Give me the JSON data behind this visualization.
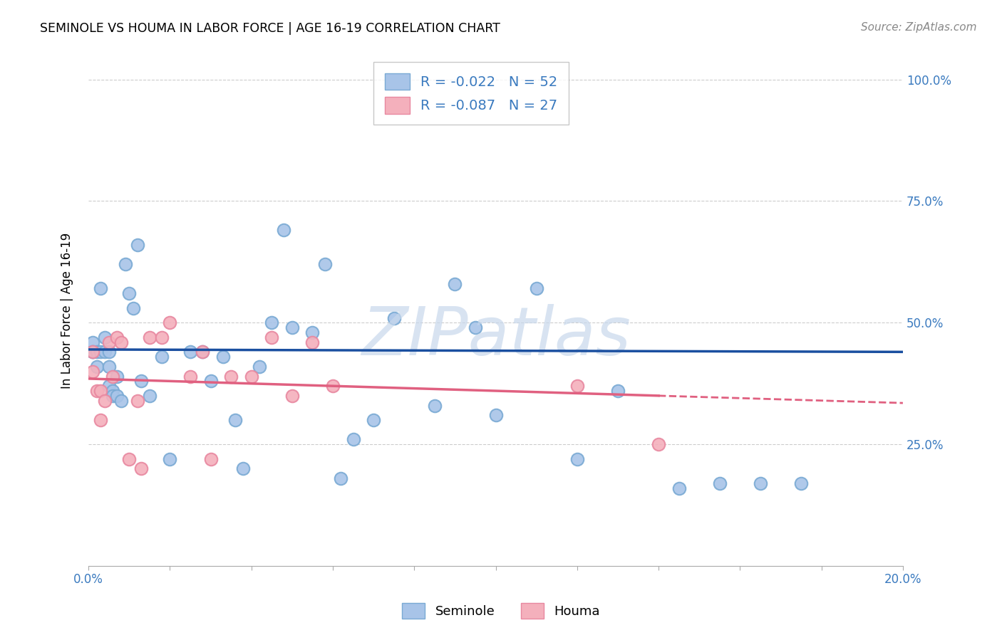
{
  "title": "SEMINOLE VS HOUMA IN LABOR FORCE | AGE 16-19 CORRELATION CHART",
  "source": "Source: ZipAtlas.com",
  "ylabel": "In Labor Force | Age 16-19",
  "xlim": [
    0.0,
    0.2
  ],
  "ylim": [
    0.0,
    1.05
  ],
  "seminole_color": "#a8c4e8",
  "seminole_edge": "#7aaad4",
  "houma_color": "#f4b0bc",
  "houma_edge": "#e888a0",
  "seminole_line_color": "#1a4fa0",
  "houma_line_color": "#e06080",
  "R_seminole": -0.022,
  "N_seminole": 52,
  "R_houma": -0.087,
  "N_houma": 27,
  "watermark": "ZIPatlas",
  "axis_label_color": "#3a7abf",
  "legend_color": "#3a7abf",
  "seminole_line_y0": 0.445,
  "seminole_line_y1": 0.44,
  "houma_line_y0": 0.385,
  "houma_line_y1": 0.335,
  "seminole_x": [
    0.001,
    0.001,
    0.001,
    0.002,
    0.002,
    0.003,
    0.003,
    0.004,
    0.004,
    0.005,
    0.005,
    0.005,
    0.006,
    0.006,
    0.007,
    0.007,
    0.008,
    0.009,
    0.01,
    0.011,
    0.012,
    0.013,
    0.015,
    0.018,
    0.02,
    0.025,
    0.028,
    0.03,
    0.033,
    0.036,
    0.038,
    0.042,
    0.045,
    0.048,
    0.05,
    0.055,
    0.058,
    0.062,
    0.065,
    0.07,
    0.075,
    0.085,
    0.09,
    0.095,
    0.1,
    0.11,
    0.12,
    0.13,
    0.145,
    0.155,
    0.165,
    0.175
  ],
  "seminole_y": [
    0.44,
    0.46,
    0.44,
    0.44,
    0.41,
    0.57,
    0.44,
    0.47,
    0.44,
    0.44,
    0.41,
    0.37,
    0.36,
    0.35,
    0.39,
    0.35,
    0.34,
    0.62,
    0.56,
    0.53,
    0.66,
    0.38,
    0.35,
    0.43,
    0.22,
    0.44,
    0.44,
    0.38,
    0.43,
    0.3,
    0.2,
    0.41,
    0.5,
    0.69,
    0.49,
    0.48,
    0.62,
    0.18,
    0.26,
    0.3,
    0.51,
    0.33,
    0.58,
    0.49,
    0.31,
    0.57,
    0.22,
    0.36,
    0.16,
    0.17,
    0.17,
    0.17
  ],
  "houma_x": [
    0.001,
    0.001,
    0.002,
    0.003,
    0.003,
    0.004,
    0.005,
    0.006,
    0.007,
    0.008,
    0.01,
    0.012,
    0.013,
    0.015,
    0.018,
    0.02,
    0.025,
    0.028,
    0.03,
    0.035,
    0.04,
    0.045,
    0.05,
    0.055,
    0.06,
    0.12,
    0.14
  ],
  "houma_y": [
    0.4,
    0.44,
    0.36,
    0.36,
    0.3,
    0.34,
    0.46,
    0.39,
    0.47,
    0.46,
    0.22,
    0.34,
    0.2,
    0.47,
    0.47,
    0.5,
    0.39,
    0.44,
    0.22,
    0.39,
    0.39,
    0.47,
    0.35,
    0.46,
    0.37,
    0.37,
    0.25
  ]
}
